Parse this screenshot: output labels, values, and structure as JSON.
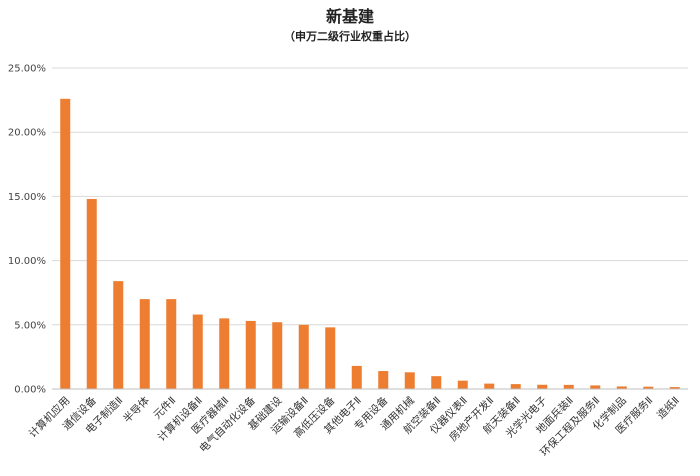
{
  "chart_data": {
    "type": "bar",
    "title": "新基建",
    "subtitle": "（申万二级行业权重占比）",
    "xlabel": "",
    "ylabel": "",
    "ylim": [
      0,
      25
    ],
    "yticks": [
      "0.00%",
      "5.00%",
      "10.00%",
      "15.00%",
      "20.00%",
      "25.00%"
    ],
    "grid": true,
    "legend": "none",
    "bar_color": "#ED7D31",
    "categories": [
      "计算机应用",
      "通信设备",
      "电子制造Ⅱ",
      "半导体",
      "元件Ⅱ",
      "计算机设备Ⅱ",
      "医疗器械Ⅱ",
      "电气自动化设备",
      "基础建设",
      "运输设备Ⅱ",
      "高低压设备",
      "其他电子Ⅱ",
      "专用设备",
      "通用机械",
      "航空装备Ⅱ",
      "仪器仪表Ⅱ",
      "房地产开发Ⅱ",
      "航天装备Ⅱ",
      "光学光电子",
      "地面兵装Ⅱ",
      "环保工程及服务Ⅱ",
      "化学制品",
      "医疗服务Ⅱ",
      "造纸Ⅱ"
    ],
    "values": [
      22.6,
      14.8,
      8.4,
      7.0,
      7.0,
      5.8,
      5.5,
      5.3,
      5.2,
      5.0,
      4.8,
      1.8,
      1.4,
      1.3,
      1.0,
      0.65,
      0.42,
      0.38,
      0.33,
      0.32,
      0.28,
      0.2,
      0.18,
      0.15
    ]
  }
}
